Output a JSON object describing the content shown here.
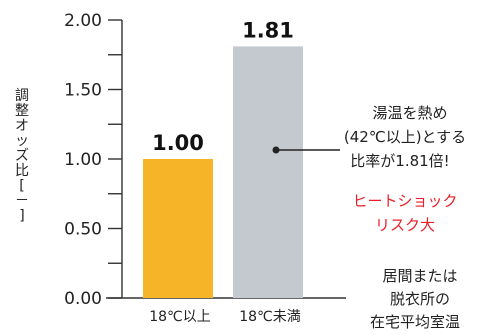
{
  "chart_data": {
    "type": "bar",
    "categories": [
      "18℃以上",
      "18℃未満"
    ],
    "values": [
      1.0,
      1.81
    ],
    "value_labels": [
      "1.00",
      "1.81"
    ],
    "colors": [
      "#f6b528",
      "#c3c9cf"
    ],
    "ylabel": "調整オッズ比[－]",
    "ylim": [
      0,
      2
    ],
    "yticks": [
      "0.00",
      "0.50",
      "1.00",
      "1.50",
      "2.00"
    ],
    "ytick_values": [
      0,
      0.5,
      1.0,
      1.5,
      2.0
    ],
    "xlabel_lines": [
      "居間または",
      "脱衣所の",
      "在宅平均室温"
    ],
    "annotation": {
      "lines": [
        "湯温を熱め",
        "(42℃以上)とする",
        "比率が1.81倍!"
      ],
      "highlight_lines": [
        "ヒートショック",
        "リスク大"
      ],
      "highlight_color": "#e8202a"
    }
  }
}
